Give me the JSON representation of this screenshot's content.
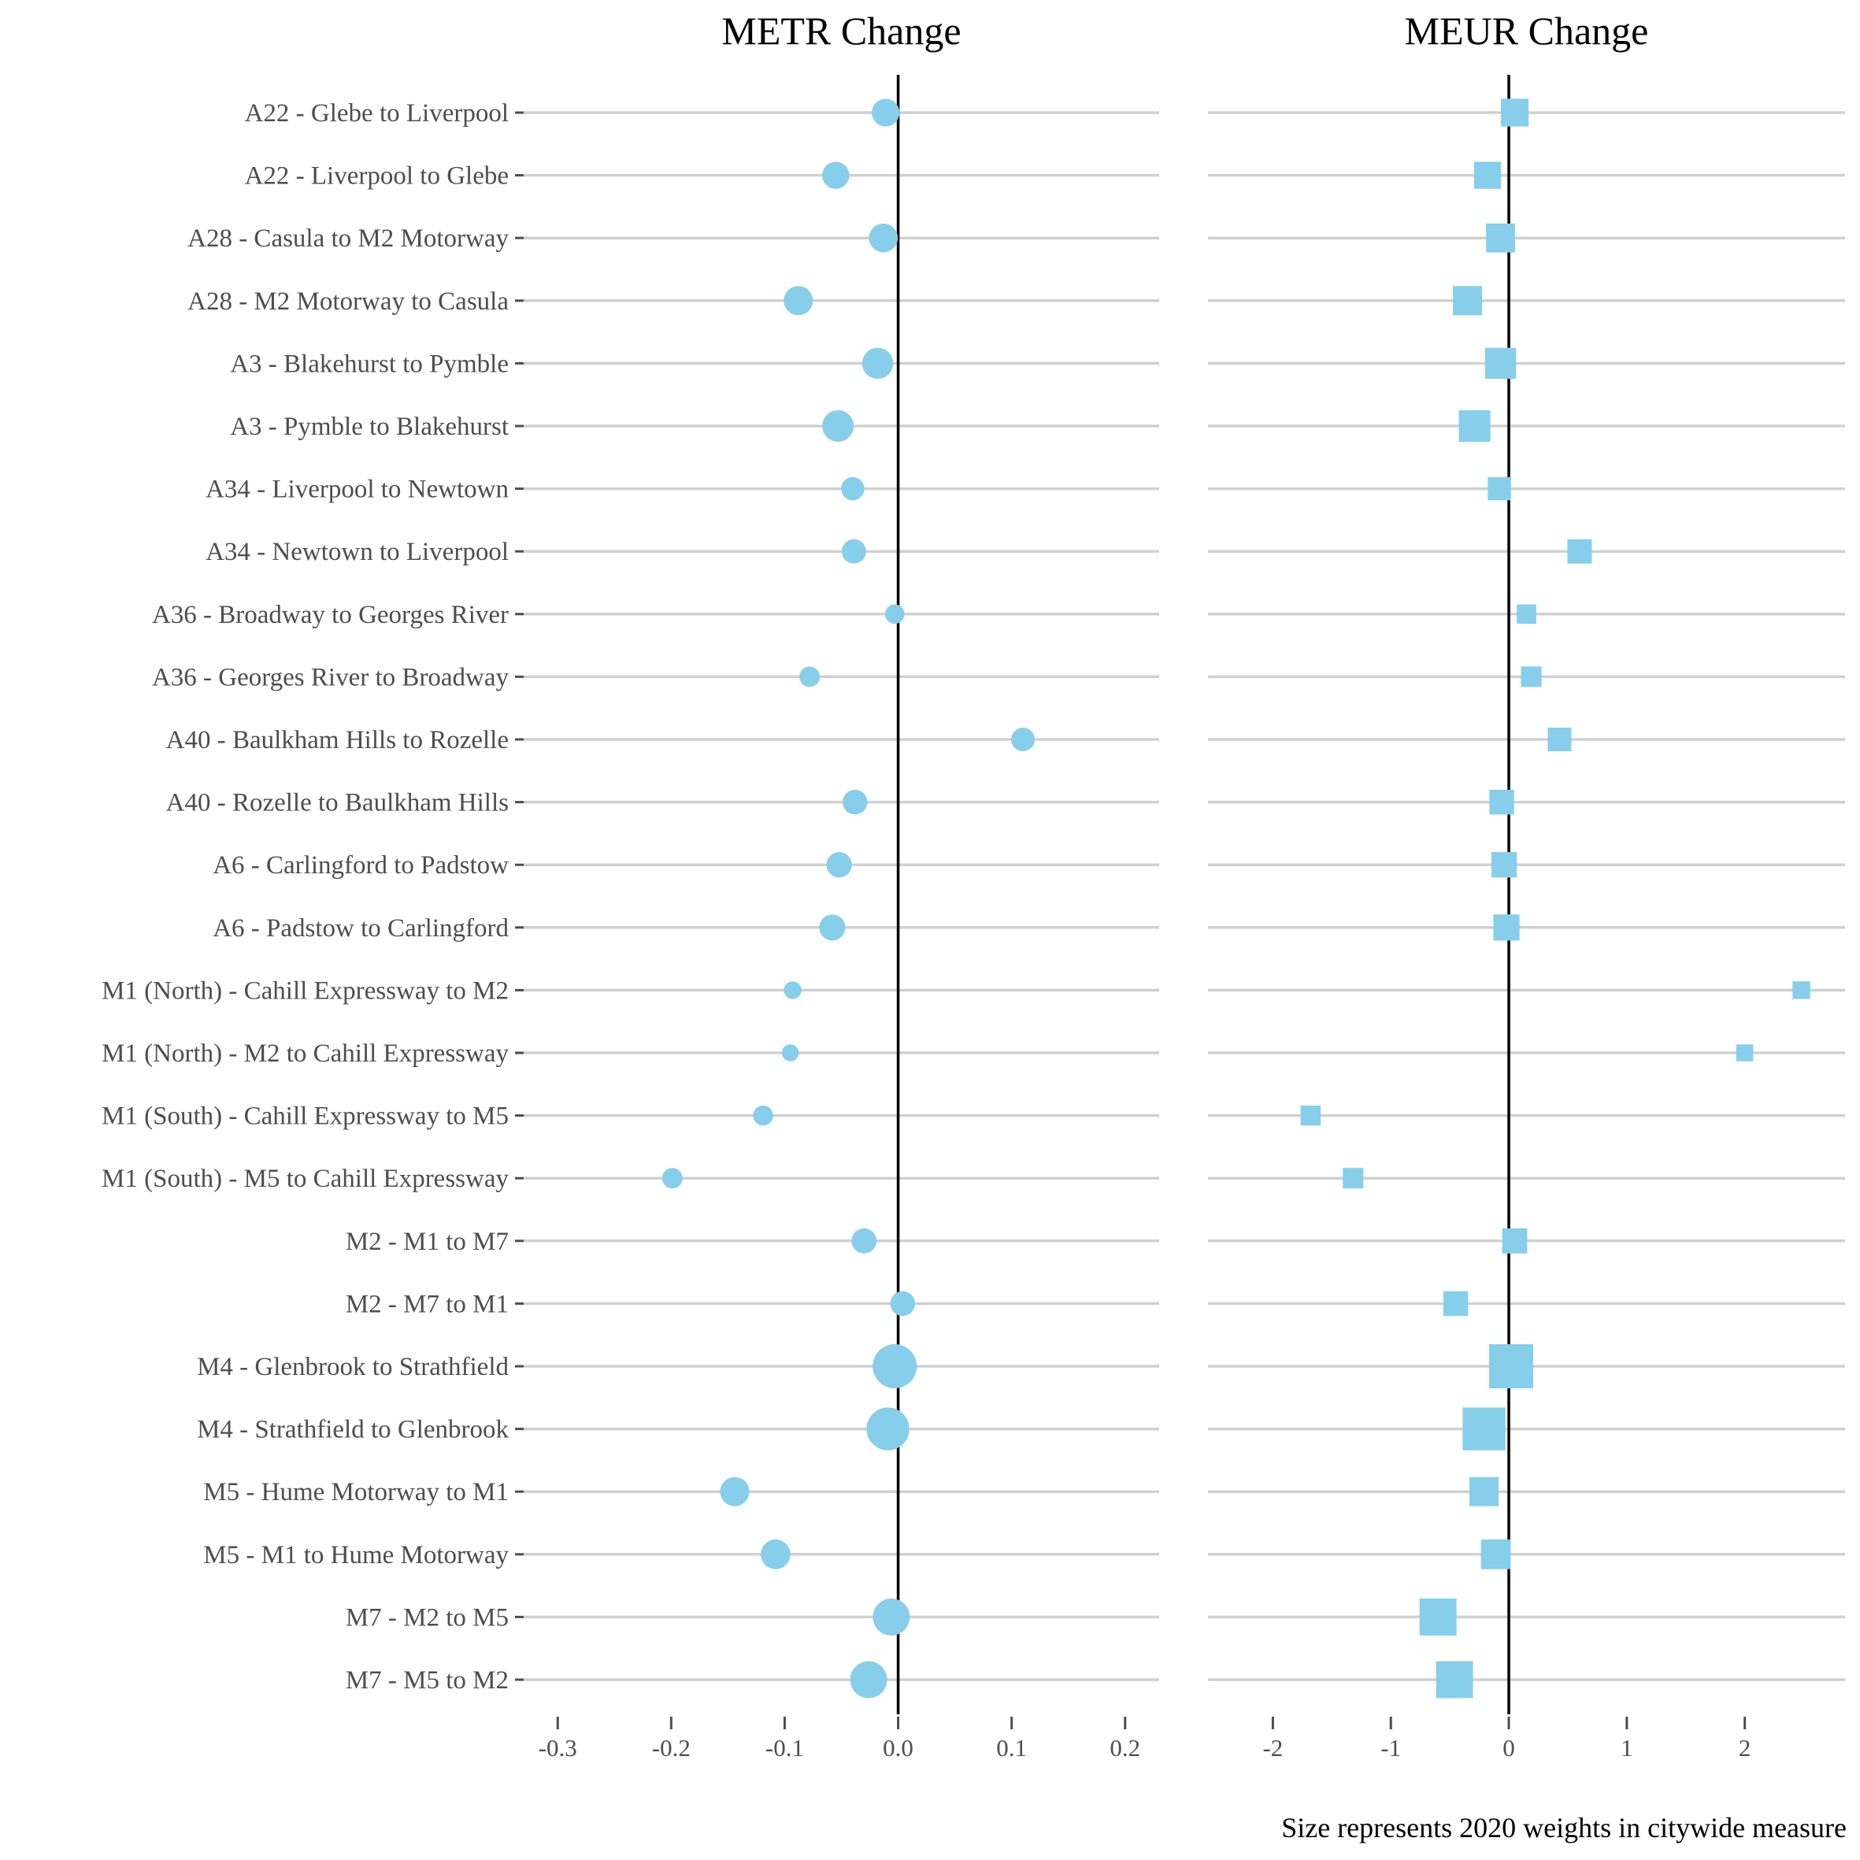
{
  "caption": "Size represents 2020 weights in citywide measure",
  "chart_data": {
    "type": "scatter",
    "routes": [
      "A22 - Glebe to Liverpool",
      "A22 - Liverpool to Glebe",
      "A28 - Casula to M2 Motorway",
      "A28 - M2 Motorway to Casula",
      "A3 - Blakehurst to Pymble",
      "A3 - Pymble to Blakehurst",
      "A34 - Liverpool to Newtown",
      "A34 - Newtown to Liverpool",
      "A36 - Broadway to Georges River",
      "A36 - Georges River to Broadway",
      "A40 - Baulkham Hills to Rozelle",
      "A40 - Rozelle to Baulkham Hills",
      "A6 - Carlingford to Padstow",
      "A6 - Padstow to Carlingford",
      "M1 (North) - Cahill Expressway to M2",
      "M1 (North) - M2 to Cahill Expressway",
      "M1 (South) - Cahill Expressway to M5",
      "M1 (South) - M5 to Cahill Expressway",
      "M2 - M1 to M7",
      "M2 - M7 to M1",
      "M4 - Glenbrook to Strathfield",
      "M4 - Strathfield to Glenbrook",
      "M5 - Hume Motorway to M1",
      "M5 - M1 to Hume Motorway",
      "M7 - M2 to M5",
      "M7 - M5 to M2"
    ],
    "weights": [
      0.03,
      0.028,
      0.034,
      0.035,
      0.042,
      0.044,
      0.017,
      0.02,
      0.009,
      0.011,
      0.018,
      0.021,
      0.023,
      0.025,
      0.006,
      0.005,
      0.01,
      0.011,
      0.022,
      0.021,
      0.108,
      0.1,
      0.035,
      0.037,
      0.068,
      0.068
    ],
    "panels": [
      {
        "title": "METR Change",
        "marker": "circle",
        "xlim": [
          -0.33,
          0.23
        ],
        "ticks": [
          -0.3,
          -0.2,
          -0.1,
          0.0,
          0.1,
          0.2
        ],
        "tick_labels": [
          "-0.3",
          "-0.2",
          "-0.1",
          "0.0",
          "0.1",
          "0.2"
        ],
        "values": [
          -0.011,
          -0.055,
          -0.013,
          -0.088,
          -0.018,
          -0.053,
          -0.04,
          -0.039,
          -0.003,
          -0.078,
          0.11,
          -0.038,
          -0.052,
          -0.058,
          -0.093,
          -0.095,
          -0.119,
          -0.199,
          -0.03,
          0.004,
          -0.003,
          -0.009,
          -0.144,
          -0.108,
          -0.006,
          -0.026
        ]
      },
      {
        "title": "MEUR Change",
        "marker": "square",
        "xlim": [
          -2.55,
          2.85
        ],
        "ticks": [
          -2,
          -1,
          0,
          1,
          2
        ],
        "tick_labels": [
          "-2",
          "-1",
          "0",
          "1",
          "2"
        ],
        "values": [
          0.05,
          -0.18,
          -0.07,
          -0.35,
          -0.07,
          -0.29,
          -0.08,
          0.6,
          0.15,
          0.19,
          0.43,
          -0.06,
          -0.04,
          -0.02,
          2.48,
          2.0,
          -1.68,
          -1.32,
          0.05,
          -0.45,
          0.02,
          -0.21,
          -0.21,
          -0.11,
          -0.6,
          -0.46
        ]
      }
    ],
    "grid": false,
    "legend": "none"
  }
}
